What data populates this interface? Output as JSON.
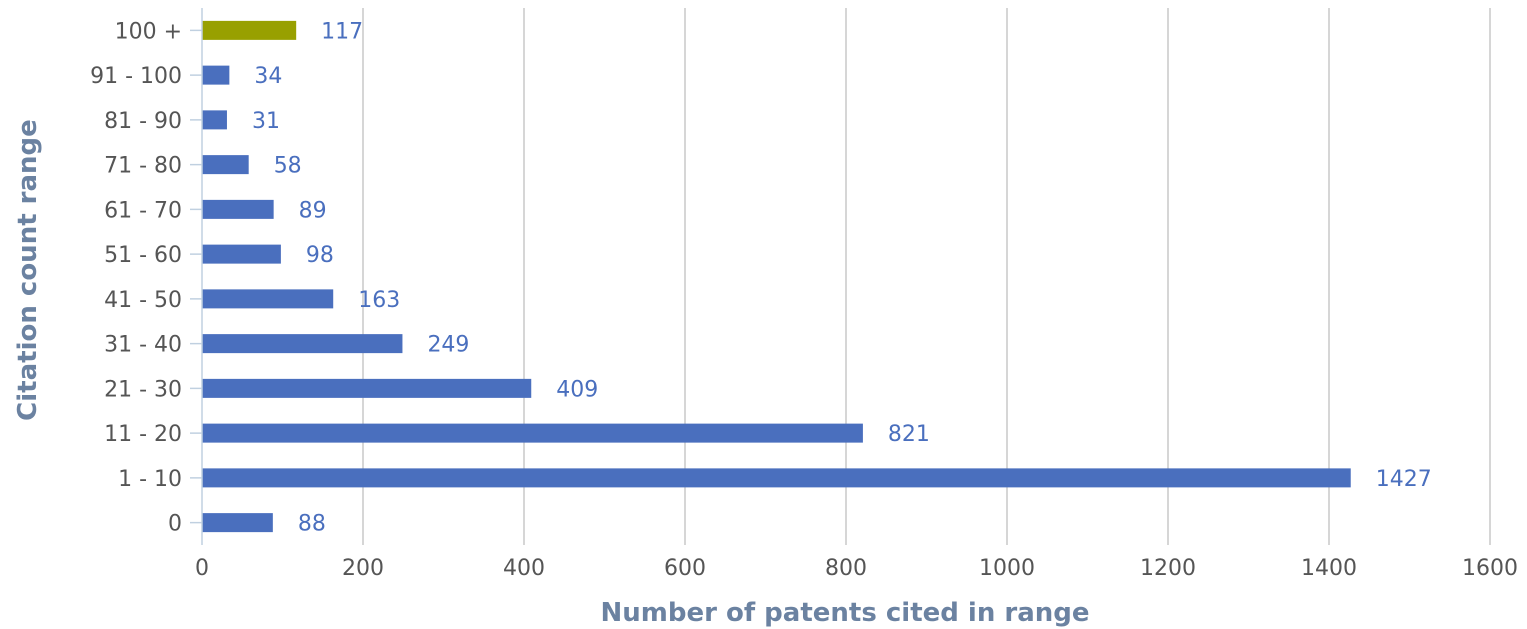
{
  "chart_data": {
    "type": "bar",
    "orientation": "horizontal",
    "xlabel": "Number of patents cited in range",
    "ylabel": "Citation count range",
    "xlim": [
      0,
      1600
    ],
    "xticks": [
      0,
      200,
      400,
      600,
      800,
      1000,
      1200,
      1400,
      1600
    ],
    "grid": "vertical",
    "categories": [
      "100 +",
      "91 - 100",
      "81 - 90",
      "71 - 80",
      "61 - 70",
      "51 - 60",
      "41 - 50",
      "31 - 40",
      "21 - 30",
      "11 - 20",
      "1 - 10",
      "0"
    ],
    "values": [
      117,
      34,
      31,
      58,
      89,
      98,
      163,
      249,
      409,
      821,
      1427,
      88
    ],
    "colors": [
      "#98a000",
      "#4a6fbe",
      "#4a6fbe",
      "#4a6fbe",
      "#4a6fbe",
      "#4a6fbe",
      "#4a6fbe",
      "#4a6fbe",
      "#4a6fbe",
      "#4a6fbe",
      "#4a6fbe",
      "#4a6fbe"
    ],
    "data_label_color": "#4a6fbe",
    "tick_label_color": "#555555",
    "grid_color": "#c8c8c8"
  }
}
